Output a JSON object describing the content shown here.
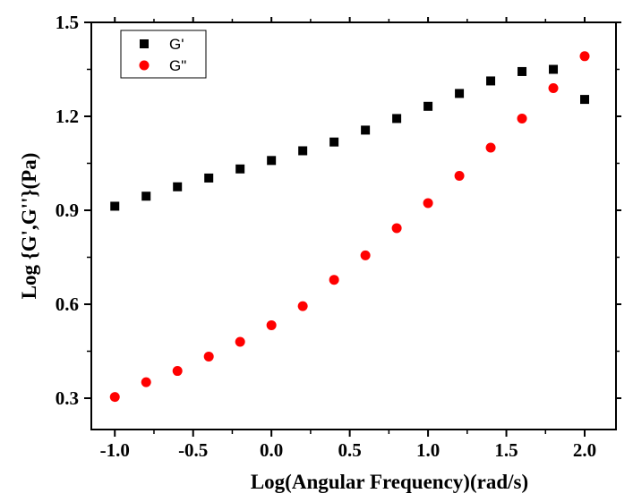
{
  "chart_data": {
    "type": "scatter",
    "xlabel": "Log(Angular Frequency)(rad/s)",
    "ylabel": "Log {G',G''}(Pa)",
    "xlim": [
      -1.15,
      2.2
    ],
    "ylim": [
      0.2,
      1.5
    ],
    "xticks": [
      "-1.0",
      "-0.5",
      "0.0",
      "0.5",
      "1.0",
      "1.5",
      "2.0"
    ],
    "xtick_values": [
      -1.0,
      -0.5,
      0.0,
      0.5,
      1.0,
      1.5,
      2.0
    ],
    "yticks": [
      "0.3",
      "0.6",
      "0.9",
      "1.2",
      "1.5"
    ],
    "ytick_values": [
      0.3,
      0.6,
      0.9,
      1.2,
      1.5
    ],
    "grid": false,
    "legend_position": "top-left",
    "series": [
      {
        "name": "G'",
        "marker": "square",
        "color": "#000000",
        "x": [
          -1.0,
          -0.8,
          -0.6,
          -0.4,
          -0.2,
          0.0,
          0.2,
          0.4,
          0.6,
          0.8,
          1.0,
          1.2,
          1.4,
          1.6,
          1.8,
          2.0
        ],
        "y": [
          0.913,
          0.945,
          0.975,
          1.003,
          1.032,
          1.059,
          1.09,
          1.118,
          1.156,
          1.193,
          1.232,
          1.273,
          1.313,
          1.343,
          1.35,
          1.254
        ]
      },
      {
        "name": "G\"",
        "marker": "circle",
        "color": "#ff0000",
        "x": [
          -1.0,
          -0.8,
          -0.6,
          -0.4,
          -0.2,
          0.0,
          0.2,
          0.4,
          0.6,
          0.8,
          1.0,
          1.2,
          1.4,
          1.6,
          1.8,
          2.0
        ],
        "y": [
          0.304,
          0.351,
          0.387,
          0.433,
          0.48,
          0.533,
          0.594,
          0.678,
          0.756,
          0.843,
          0.923,
          1.01,
          1.1,
          1.193,
          1.29,
          1.392
        ]
      }
    ]
  }
}
